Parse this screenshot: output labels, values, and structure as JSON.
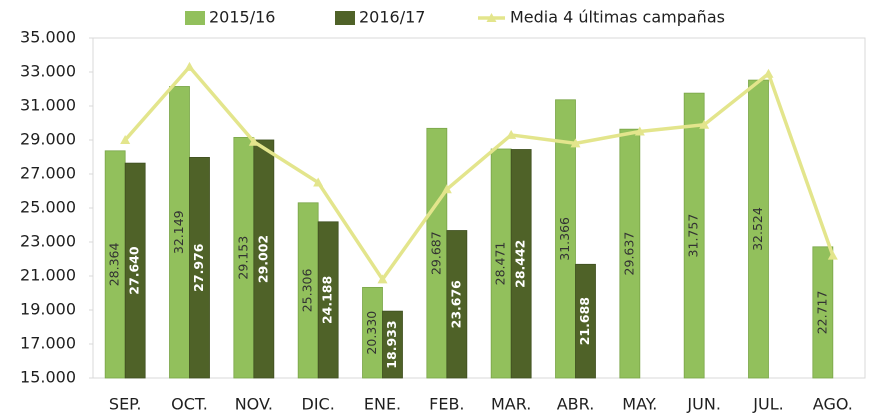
{
  "chart_data": {
    "type": "bar_line",
    "categories": [
      "SEP.",
      "OCT.",
      "NOV.",
      "DIC.",
      "ENE.",
      "FEB.",
      "MAR.",
      "ABR.",
      "MAY.",
      "JUN.",
      "JUL.",
      "AGO."
    ],
    "series": [
      {
        "name": "2015/16",
        "color": "#92c05c",
        "type": "bar",
        "values": [
          28364,
          32149,
          29153,
          25306,
          20330,
          29687,
          28471,
          31366,
          29637,
          31757,
          32524,
          22717
        ],
        "value_labels": [
          "28.364",
          "32.149",
          "29.153",
          "25.306",
          "20.330",
          "29.687",
          "28.471",
          "31.366",
          "29.637",
          "31.757",
          "32.524",
          "22.717"
        ]
      },
      {
        "name": "2016/17",
        "color": "#4f6228",
        "type": "bar",
        "values": [
          27640,
          27976,
          29002,
          24188,
          18933,
          23676,
          28442,
          21688,
          null,
          null,
          null,
          null
        ],
        "value_labels": [
          "27.640",
          "27.976",
          "29.002",
          "24.188",
          "18.933",
          "23.676",
          "28.442",
          "21.688",
          null,
          null,
          null,
          null
        ]
      },
      {
        "name": "Media 4 últimas campañas",
        "color": "#e3e58c",
        "type": "line",
        "values": [
          29000,
          33300,
          28900,
          26500,
          20800,
          26100,
          29300,
          28800,
          29500,
          29900,
          32900,
          22200
        ]
      }
    ],
    "ylim": [
      15000,
      35000
    ],
    "yticks": [
      {
        "value": 15000,
        "label": "15.000"
      },
      {
        "value": 17000,
        "label": "17.000"
      },
      {
        "value": 19000,
        "label": "19.000"
      },
      {
        "value": 21000,
        "label": "21.000"
      },
      {
        "value": 23000,
        "label": "23.000"
      },
      {
        "value": 25000,
        "label": "25.000"
      },
      {
        "value": 27000,
        "label": "27.000"
      },
      {
        "value": 29000,
        "label": "29.000"
      },
      {
        "value": 31000,
        "label": "31.000"
      },
      {
        "value": 33000,
        "label": "33.000"
      },
      {
        "value": 35000,
        "label": "35.000"
      }
    ],
    "grid": false,
    "legend": "top"
  }
}
